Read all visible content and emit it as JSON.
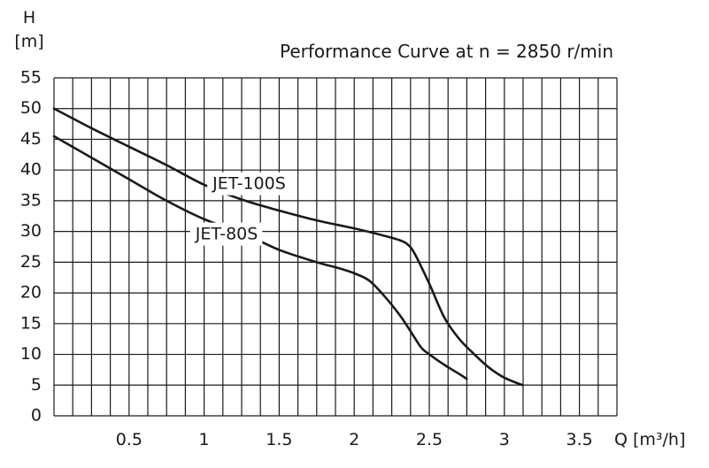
{
  "chart_data": {
    "type": "line",
    "title": "Performance Curve at n = 2850 r/min",
    "ylabel_line1": "H",
    "ylabel_line2": "[m]",
    "xlabel": "Q [m³/h]",
    "xlim": [
      0,
      3.75
    ],
    "ylim": [
      0,
      55
    ],
    "x_minor_step": 0.125,
    "y_step": 5,
    "grid": true,
    "x_ticks": [
      {
        "value": 0.5,
        "label": "0.5"
      },
      {
        "value": 1,
        "label": "1"
      },
      {
        "value": 1.5,
        "label": "1.5"
      },
      {
        "value": 2,
        "label": "2"
      },
      {
        "value": 2.5,
        "label": "2.5"
      },
      {
        "value": 3,
        "label": "3"
      },
      {
        "value": 3.5,
        "label": "3.5"
      }
    ],
    "y_ticks": [
      {
        "value": 0,
        "label": "0"
      },
      {
        "value": 5,
        "label": "5"
      },
      {
        "value": 10,
        "label": "10"
      },
      {
        "value": 15,
        "label": "15"
      },
      {
        "value": 20,
        "label": "20"
      },
      {
        "value": 25,
        "label": "25"
      },
      {
        "value": 30,
        "label": "30"
      },
      {
        "value": 35,
        "label": "35"
      },
      {
        "value": 40,
        "label": "40"
      },
      {
        "value": 45,
        "label": "45"
      },
      {
        "value": 50,
        "label": "50"
      },
      {
        "value": 55,
        "label": "55"
      }
    ],
    "series": [
      {
        "name": "JET-100S",
        "color": "#1a1a1a",
        "label_anchor": {
          "x": 1.3,
          "y": 37.7
        },
        "x": [
          0,
          0.25,
          0.5,
          0.75,
          1.0,
          1.25,
          1.5,
          1.75,
          2.0,
          2.2,
          2.3,
          2.35,
          2.4,
          2.5,
          2.6,
          2.7,
          2.8,
          2.9,
          3.0,
          3.12
        ],
        "y": [
          50,
          46.8,
          43.8,
          40.8,
          37.6,
          35.2,
          33.4,
          31.8,
          30.5,
          29.3,
          28.6,
          28.0,
          26.5,
          21.5,
          16.0,
          12.5,
          10.0,
          7.8,
          6.2,
          5.0
        ]
      },
      {
        "name": "JET-80S",
        "color": "#1a1a1a",
        "label_anchor": {
          "x": 1.15,
          "y": 29.5
        },
        "x": [
          0,
          0.25,
          0.5,
          0.75,
          1.0,
          1.25,
          1.5,
          1.75,
          1.9,
          2.0,
          2.1,
          2.2,
          2.3,
          2.35,
          2.4,
          2.45,
          2.5,
          2.6,
          2.7,
          2.75
        ],
        "y": [
          45.5,
          42.0,
          38.5,
          35.0,
          32.0,
          29.8,
          27.0,
          25.0,
          24.0,
          23.2,
          22.0,
          19.5,
          16.5,
          14.7,
          12.8,
          11.0,
          10.0,
          8.3,
          6.8,
          6.0
        ]
      }
    ]
  }
}
